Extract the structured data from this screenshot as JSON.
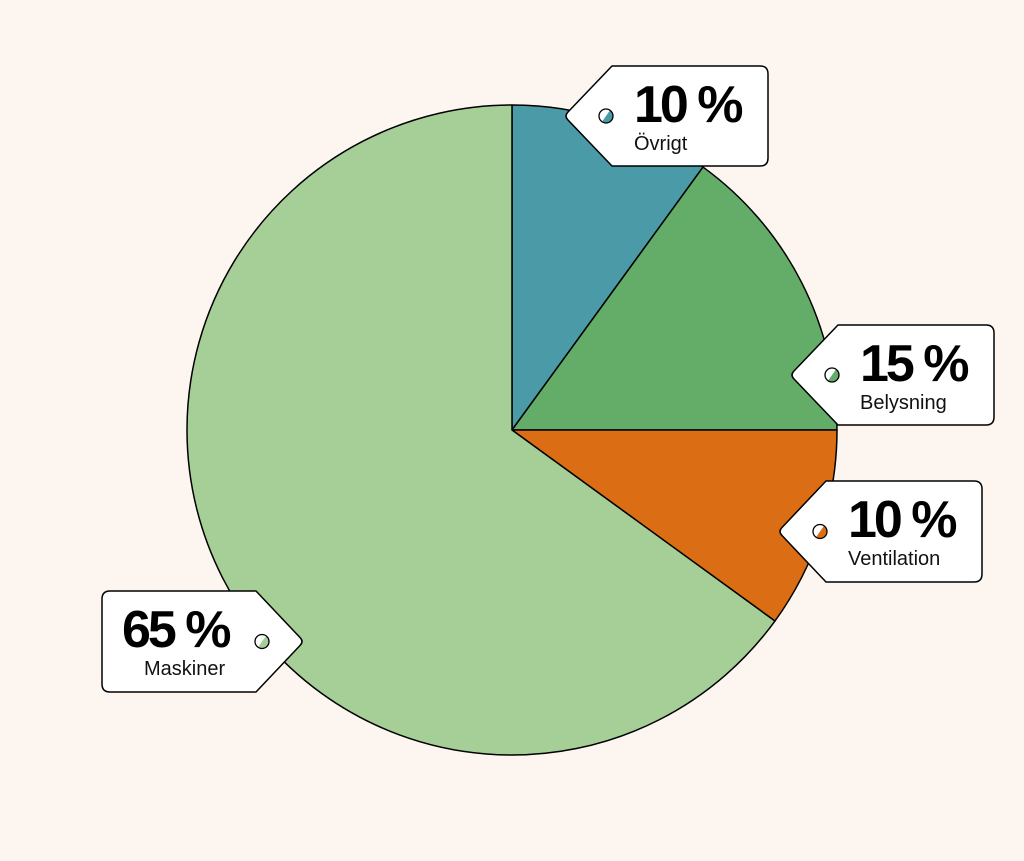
{
  "chart_data": {
    "type": "pie",
    "title": "",
    "start_angle_deg": 0,
    "direction": "clockwise",
    "slices": [
      {
        "label": "Övrigt",
        "value": 10,
        "value_label": "10 %",
        "color": "#4a9aa8"
      },
      {
        "label": "Belysning",
        "value": 15,
        "value_label": "15 %",
        "color": "#64ad69"
      },
      {
        "label": "Ventilation",
        "value": 10,
        "value_label": "10 %",
        "color": "#db6d14"
      },
      {
        "label": "Maskiner",
        "value": 65,
        "value_label": "65 %",
        "color": "#a6cf97"
      }
    ],
    "stroke_color": "#000000",
    "tag_background": "#ffffff"
  }
}
